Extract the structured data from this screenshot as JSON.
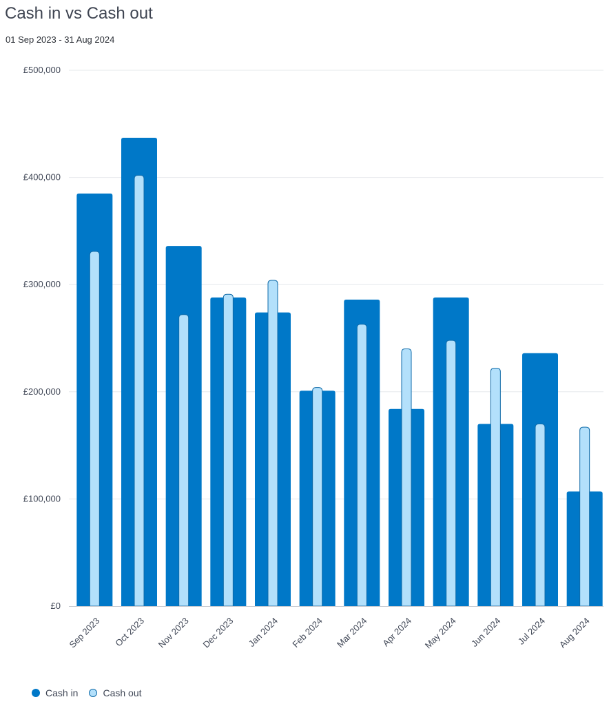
{
  "header": {
    "title": "Cash in vs Cash out",
    "date_range": "01 Sep 2023 - 31 Aug 2024"
  },
  "colors": {
    "cash_in": "#0078c8",
    "cash_out_fill": "#b3e0fb",
    "cash_out_stroke": "#0e6aa8",
    "grid": "#e6e8eb",
    "axis": "#c9ccd2",
    "text": "#404756"
  },
  "chart_data": {
    "type": "bar",
    "title": "Cash in vs Cash out",
    "subtitle": "01 Sep 2023 - 31 Aug 2024",
    "xlabel": "",
    "ylabel": "",
    "ylim": [
      0,
      500000
    ],
    "yticks": [
      0,
      100000,
      200000,
      300000,
      400000,
      500000
    ],
    "ytick_labels": [
      "£0",
      "£100,000",
      "£200,000",
      "£300,000",
      "£400,000",
      "£500,000"
    ],
    "categories": [
      "Sep 2023",
      "Oct 2023",
      "Nov 2023",
      "Dec 2023",
      "Jan 2024",
      "Feb 2024",
      "Mar 2024",
      "Apr 2024",
      "May 2024",
      "Jun 2024",
      "Jul 2024",
      "Aug 2024"
    ],
    "series": [
      {
        "name": "Cash in",
        "values": [
          385000,
          437000,
          336000,
          288000,
          274000,
          201000,
          286000,
          184000,
          288000,
          170000,
          236000,
          107000
        ]
      },
      {
        "name": "Cash out",
        "values": [
          331000,
          402000,
          272000,
          291000,
          304000,
          204000,
          263000,
          240000,
          248000,
          222000,
          170000,
          167000
        ]
      }
    ],
    "grid": true,
    "legend_position": "bottom-left"
  },
  "legend": {
    "cash_in_label": "Cash in",
    "cash_out_label": "Cash out"
  }
}
